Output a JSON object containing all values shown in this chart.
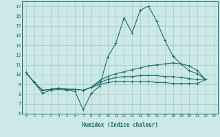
{
  "title": "",
  "xlabel": "Humidex (Indice chaleur)",
  "background_color": "#cce8e8",
  "grid_color": "#aacccc",
  "line_color": "#1a6b6b",
  "xlim": [
    -0.5,
    23.5
  ],
  "ylim": [
    6,
    17.5
  ],
  "xticks": [
    0,
    1,
    2,
    3,
    4,
    5,
    6,
    7,
    8,
    9,
    10,
    11,
    12,
    13,
    14,
    15,
    16,
    17,
    18,
    19,
    20,
    21,
    22,
    23
  ],
  "yticks": [
    6,
    7,
    8,
    9,
    10,
    11,
    12,
    13,
    14,
    15,
    16,
    17
  ],
  "series": [
    [
      10.2,
      9.2,
      8.1,
      8.4,
      8.5,
      8.4,
      8.3,
      6.4,
      8.1,
      8.8,
      11.8,
      13.2,
      15.8,
      14.3,
      16.6,
      17.0,
      15.5,
      13.5,
      11.9,
      11.1,
      10.4,
      10.1,
      9.5,
      null
    ],
    [
      10.2,
      9.2,
      8.4,
      8.5,
      8.6,
      8.5,
      8.5,
      8.4,
      8.7,
      9.4,
      9.8,
      10.1,
      10.3,
      10.5,
      10.7,
      10.9,
      11.0,
      11.1,
      11.2,
      11.1,
      10.9,
      10.4,
      9.5,
      null
    ],
    [
      10.2,
      9.2,
      8.4,
      8.5,
      8.6,
      8.5,
      8.5,
      8.4,
      8.7,
      9.2,
      9.5,
      9.7,
      9.8,
      9.8,
      9.9,
      9.9,
      9.9,
      9.8,
      9.8,
      9.7,
      9.6,
      9.5,
      9.5,
      null
    ],
    [
      10.2,
      9.2,
      8.4,
      8.5,
      8.6,
      8.5,
      8.5,
      8.4,
      8.7,
      9.0,
      9.2,
      9.3,
      9.3,
      9.3,
      9.3,
      9.3,
      9.2,
      9.2,
      9.1,
      9.1,
      9.1,
      9.1,
      9.5,
      null
    ]
  ],
  "figsize": [
    3.2,
    2.0
  ],
  "dpi": 100
}
